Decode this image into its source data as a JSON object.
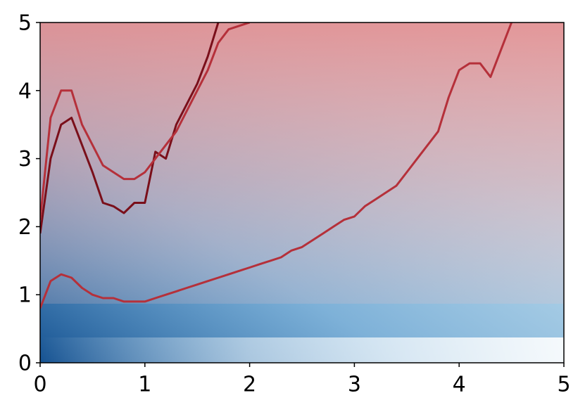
{
  "chart_data": {
    "type": "line",
    "x": [
      0,
      0.1,
      0.2,
      0.3,
      0.4,
      0.5,
      0.6,
      0.7,
      0.8,
      0.9,
      1.0,
      1.1,
      1.2,
      1.3,
      1.4,
      1.5,
      1.6,
      1.7,
      1.8,
      1.9,
      2.0,
      2.1,
      2.2,
      2.3,
      2.4,
      2.5,
      2.6,
      2.7,
      2.8,
      2.9,
      3.0,
      3.1,
      3.2,
      3.3,
      3.4,
      3.5,
      3.6,
      3.7,
      3.8,
      3.9,
      4.0,
      4.1,
      4.2,
      4.3,
      4.4,
      4.5
    ],
    "series": [
      {
        "color": "#7a0f1a",
        "values": [
          1.9,
          3.0,
          3.5,
          3.6,
          3.2,
          2.8,
          2.35,
          2.3,
          2.2,
          2.35,
          2.35,
          3.1,
          3.0,
          3.5,
          3.8,
          4.1,
          4.5,
          5.0,
          null,
          null,
          null,
          null,
          null,
          null,
          null,
          null,
          null,
          null,
          null,
          null,
          null,
          null,
          null,
          null,
          null,
          null,
          null,
          null,
          null,
          null,
          null,
          null,
          null,
          null,
          null,
          null
        ]
      },
      {
        "color": "#b5303a",
        "values": [
          2.1,
          3.6,
          4.0,
          4.0,
          3.5,
          3.2,
          2.9,
          2.8,
          2.7,
          2.7,
          2.8,
          3.0,
          3.2,
          3.4,
          3.7,
          4.0,
          4.3,
          4.7,
          4.9,
          4.95,
          5.0,
          null,
          null,
          null,
          null,
          null,
          null,
          null,
          null,
          null,
          null,
          null,
          null,
          null,
          null,
          null,
          null,
          null,
          null,
          null,
          null,
          null,
          null,
          null,
          null,
          null
        ]
      },
      {
        "color": "#b5303a",
        "values": [
          0.8,
          1.2,
          1.3,
          1.25,
          1.1,
          1.0,
          0.95,
          0.95,
          0.9,
          0.9,
          0.9,
          0.95,
          1.0,
          1.05,
          1.1,
          1.15,
          1.2,
          1.25,
          1.3,
          1.35,
          1.4,
          1.45,
          1.5,
          1.55,
          1.65,
          1.7,
          1.8,
          1.9,
          2.0,
          2.1,
          2.15,
          2.3,
          2.4,
          2.5,
          2.6,
          2.8,
          3.0,
          3.2,
          3.4,
          3.9,
          4.3,
          4.4,
          4.4,
          4.2,
          4.6,
          5.0
        ]
      }
    ],
    "xlim": [
      0,
      5
    ],
    "ylim": [
      0,
      5
    ],
    "xticks": [
      0,
      1,
      2,
      3,
      4,
      5
    ],
    "yticks": [
      0,
      1,
      2,
      3,
      4,
      5
    ]
  }
}
